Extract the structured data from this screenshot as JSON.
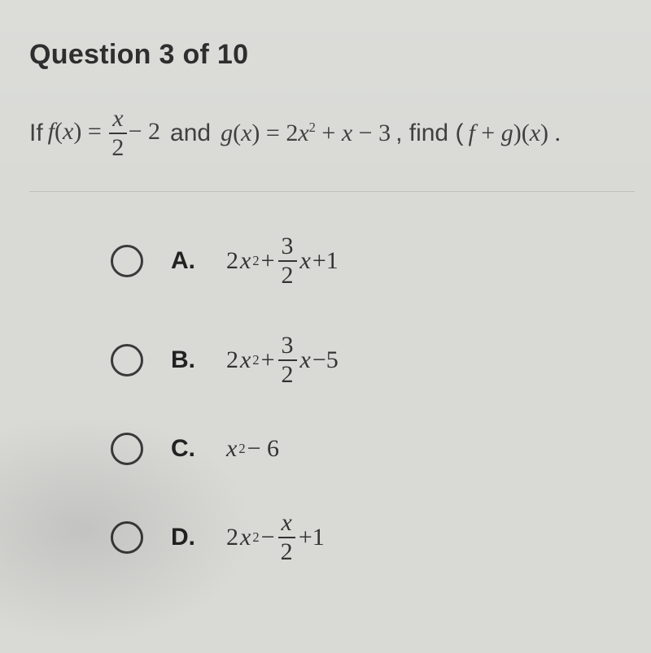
{
  "question": {
    "title": "Question 3 of 10",
    "stem_prefix": "If",
    "f_lhs_f": "f",
    "f_lhs_open": "(",
    "f_lhs_x": "x",
    "f_lhs_close": ") =",
    "frac1_n": "x",
    "frac1_d": "2",
    "f_tail": "− 2",
    "stem_and": "and",
    "g_lhs_g": "g",
    "g_lhs_open": "(",
    "g_lhs_x": "x",
    "g_lhs_close": ") = 2",
    "g_x2_x": "x",
    "g_x2_sup": "2",
    "g_tail1": "+",
    "g_tail_x": "x",
    "g_tail2": "− 3",
    "stem_find": ", find (",
    "fg_f": "f",
    "fg_plus": " + ",
    "fg_g": "g",
    "fg_close": ")(",
    "fg_x": "x",
    "fg_end": ") ."
  },
  "choices": [
    {
      "label": "A.",
      "pre": "2",
      "x2_x": "x",
      "x2_sup": "2",
      "op1": " + ",
      "frac_n": "3",
      "frac_d": "2",
      "mid_x": "x",
      "tail": "+1"
    },
    {
      "label": "B.",
      "pre": "2",
      "x2_x": "x",
      "x2_sup": "2",
      "op1": " + ",
      "frac_n": "3",
      "frac_d": "2",
      "mid_x": "x",
      "tail": "−5"
    },
    {
      "label": "C.",
      "pre": "",
      "x2_x": "x",
      "x2_sup": "2",
      "op1": " − 6",
      "frac_n": "",
      "frac_d": "",
      "mid_x": "",
      "tail": ""
    },
    {
      "label": "D.",
      "pre": "2",
      "x2_x": "x",
      "x2_sup": "2",
      "op1": " − ",
      "frac_n": "x",
      "frac_d": "2",
      "mid_x": "",
      "tail": "+1"
    }
  ],
  "style": {
    "background": "#d9dad6",
    "text_color": "#2a2a2a",
    "title_fontsize": 34,
    "stem_fontsize": 30,
    "choice_fontsize": 30,
    "radio_border": "#3a3a3a",
    "divider": "#bfc0bc"
  }
}
